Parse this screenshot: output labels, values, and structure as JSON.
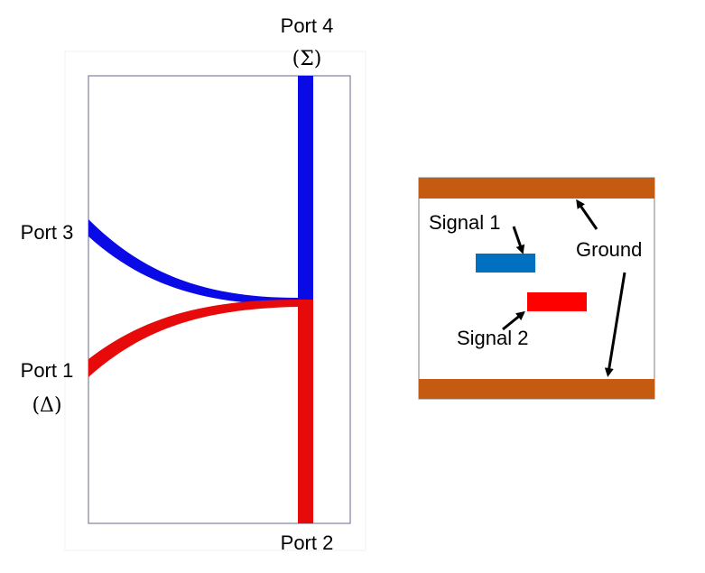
{
  "coupler": {
    "port4": {
      "label": "Port 4",
      "sub": "(Σ)"
    },
    "port3": {
      "label": "Port 3"
    },
    "port1": {
      "label": "Port 1",
      "sub": "(Δ)"
    },
    "port2": {
      "label": "Port 2"
    },
    "colors": {
      "signal_upper": "#0a0ae6",
      "signal_lower": "#e60a0a",
      "outline": "#9a9ab4"
    }
  },
  "cross_section": {
    "labels": {
      "signal1": "Signal 1",
      "signal2": "Signal 2",
      "ground": "Ground"
    },
    "colors": {
      "ground": "#c55a11",
      "signal1": "#0070c0",
      "signal2": "#ff0000",
      "frame": "#7f7f7f"
    }
  }
}
